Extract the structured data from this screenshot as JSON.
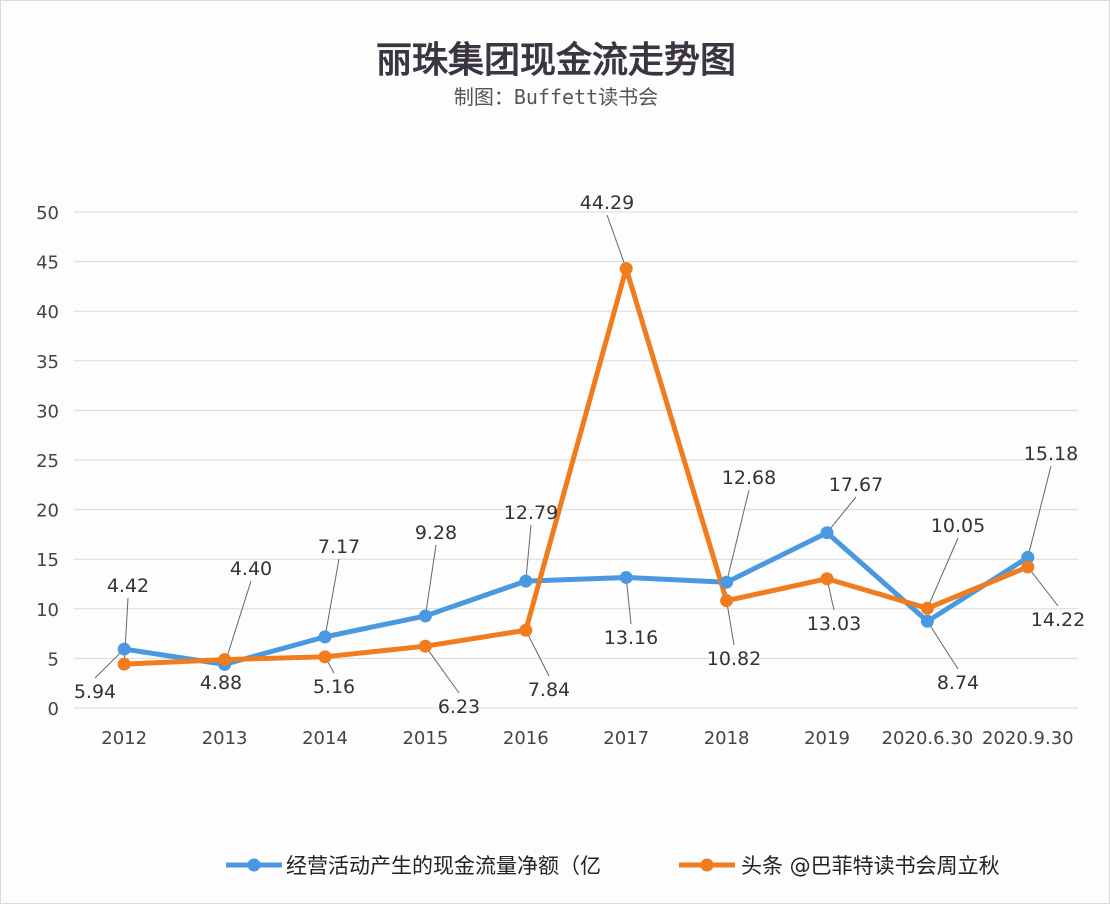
{
  "chart_data": {
    "type": "line",
    "title": "丽珠集团现金流走势图",
    "subtitle": "制图：Buffett读书会",
    "categories": [
      "2012",
      "2013",
      "2014",
      "2015",
      "2016",
      "2017",
      "2018",
      "2019",
      "2020.6.30",
      "2020.9.30"
    ],
    "ylim": [
      0,
      50
    ],
    "yticks": [
      0,
      5,
      10,
      15,
      20,
      25,
      30,
      35,
      40,
      45,
      50
    ],
    "grid": true,
    "legend_position": "bottom",
    "series": [
      {
        "name": "经营活动产生的现金流量净额（亿",
        "color": "#4a98e0",
        "values": [
          5.94,
          4.4,
          7.17,
          9.28,
          12.79,
          13.16,
          12.68,
          17.67,
          8.74,
          15.18
        ],
        "labels": [
          "5.94",
          "4.40",
          "7.17",
          "9.28",
          "12.79",
          "13.16",
          "12.68",
          "17.67",
          "8.74",
          "15.18"
        ]
      },
      {
        "name": "头条 @巴菲特读书会周立秋",
        "color": "#f07c1e",
        "values": [
          4.42,
          4.88,
          5.16,
          6.23,
          7.84,
          44.29,
          10.82,
          13.03,
          10.05,
          14.22
        ],
        "labels": [
          "4.42",
          "4.88",
          "5.16",
          "6.23",
          "7.84",
          "44.29",
          "10.82",
          "13.03",
          "10.05",
          "14.22"
        ]
      }
    ]
  }
}
